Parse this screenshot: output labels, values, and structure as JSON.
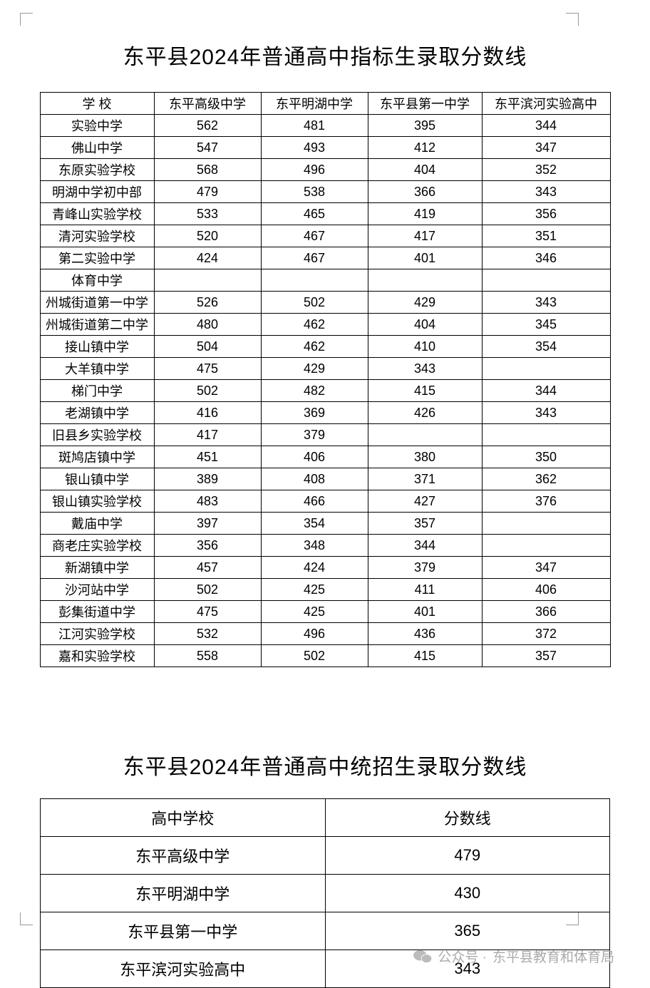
{
  "table1": {
    "type": "table",
    "title": "东平县2024年普通高中指标生录取分数线",
    "columns": [
      "学 校",
      "东平高级中学",
      "东平明湖中学",
      "东平县第一中学",
      "东平滨河实验高中"
    ],
    "rows": [
      [
        "实验中学",
        "562",
        "481",
        "395",
        "344"
      ],
      [
        "佛山中学",
        "547",
        "493",
        "412",
        "347"
      ],
      [
        "东原实验学校",
        "568",
        "496",
        "404",
        "352"
      ],
      [
        "明湖中学初中部",
        "479",
        "538",
        "366",
        "343"
      ],
      [
        "青峰山实验学校",
        "533",
        "465",
        "419",
        "356"
      ],
      [
        "清河实验学校",
        "520",
        "467",
        "417",
        "351"
      ],
      [
        "第二实验中学",
        "424",
        "467",
        "401",
        "346"
      ],
      [
        "体育中学",
        "",
        "",
        "",
        ""
      ],
      [
        "州城街道第一中学",
        "526",
        "502",
        "429",
        "343"
      ],
      [
        "州城街道第二中学",
        "480",
        "462",
        "404",
        "345"
      ],
      [
        "接山镇中学",
        "504",
        "462",
        "410",
        "354"
      ],
      [
        "大羊镇中学",
        "475",
        "429",
        "343",
        ""
      ],
      [
        "梯门中学",
        "502",
        "482",
        "415",
        "344"
      ],
      [
        "老湖镇中学",
        "416",
        "369",
        "426",
        "343"
      ],
      [
        "旧县乡实验学校",
        "417",
        "379",
        "",
        ""
      ],
      [
        "斑鸠店镇中学",
        "451",
        "406",
        "380",
        "350"
      ],
      [
        "银山镇中学",
        "389",
        "408",
        "371",
        "362"
      ],
      [
        "银山镇实验学校",
        "483",
        "466",
        "427",
        "376"
      ],
      [
        "戴庙中学",
        "397",
        "354",
        "357",
        ""
      ],
      [
        "商老庄实验学校",
        "356",
        "348",
        "344",
        ""
      ],
      [
        "新湖镇中学",
        "457",
        "424",
        "379",
        "347"
      ],
      [
        "沙河站中学",
        "502",
        "425",
        "411",
        "406"
      ],
      [
        "彭集街道中学",
        "475",
        "425",
        "401",
        "366"
      ],
      [
        "江河实验学校",
        "532",
        "496",
        "436",
        "372"
      ],
      [
        "嘉和实验学校",
        "558",
        "502",
        "415",
        "357"
      ]
    ],
    "border_color": "#000000",
    "text_color": "#000000",
    "header_fontsize": 18,
    "cell_fontsize": 18,
    "title_fontsize": 30
  },
  "table2": {
    "type": "table",
    "title": "东平县2024年普通高中统招生录取分数线",
    "columns": [
      "高中学校",
      "分数线"
    ],
    "rows": [
      [
        "东平高级中学",
        "479"
      ],
      [
        "东平明湖中学",
        "430"
      ],
      [
        "东平县第一中学",
        "365"
      ],
      [
        "东平滨河实验高中",
        "343"
      ]
    ],
    "border_color": "#000000",
    "header_fontsize": 22,
    "cell_fontsize": 22,
    "title_fontsize": 30
  },
  "footer": {
    "prefix": "公众号 ·",
    "org": "东平县教育和体育局",
    "text_color": "#aaaaaa",
    "fontsize": 19
  },
  "styling": {
    "background_color": "#ffffff",
    "corner_mark_color": "#999999"
  }
}
